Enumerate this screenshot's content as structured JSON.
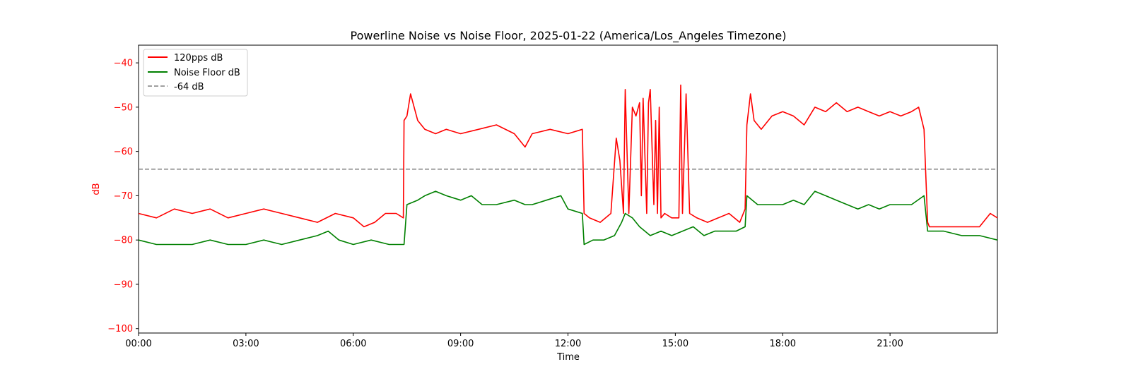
{
  "chart_data": {
    "type": "line",
    "title": "Powerline Noise vs Noise Floor, 2025-01-22 (America/Los_Angeles Timezone)",
    "xlabel": "Time",
    "ylabel": "dB",
    "xlim": [
      0,
      24
    ],
    "ylim": [
      -101,
      -36
    ],
    "x_ticks": [
      {
        "value": 0,
        "label": "00:00"
      },
      {
        "value": 3,
        "label": "03:00"
      },
      {
        "value": 6,
        "label": "06:00"
      },
      {
        "value": 9,
        "label": "09:00"
      },
      {
        "value": 12,
        "label": "12:00"
      },
      {
        "value": 15,
        "label": "15:00"
      },
      {
        "value": 18,
        "label": "18:00"
      },
      {
        "value": 21,
        "label": "21:00"
      }
    ],
    "y_ticks": [
      {
        "value": -40,
        "label": "−40"
      },
      {
        "value": -50,
        "label": "−50"
      },
      {
        "value": -60,
        "label": "−60"
      },
      {
        "value": -70,
        "label": "−70"
      },
      {
        "value": -80,
        "label": "−80"
      },
      {
        "value": -90,
        "label": "−90"
      },
      {
        "value": -100,
        "label": "−100"
      }
    ],
    "grid": false,
    "legend_position": "top-left",
    "y_axis_color": "#ff0000",
    "series": [
      {
        "name": "120pps dB",
        "color": "#ff0000",
        "style": "solid",
        "x": [
          0,
          0.5,
          1,
          1.5,
          2,
          2.5,
          3,
          3.5,
          4,
          4.5,
          5,
          5.5,
          6,
          6.3,
          6.6,
          6.9,
          7.2,
          7.4,
          7.42,
          7.5,
          7.6,
          7.8,
          8.0,
          8.3,
          8.6,
          9.0,
          9.5,
          10.0,
          10.5,
          10.8,
          11.0,
          11.5,
          12.0,
          12.4,
          12.45,
          12.6,
          12.9,
          13.2,
          13.35,
          13.45,
          13.55,
          13.6,
          13.7,
          13.8,
          13.9,
          14.0,
          14.05,
          14.1,
          14.2,
          14.25,
          14.3,
          14.4,
          14.45,
          14.5,
          14.55,
          14.6,
          14.7,
          14.9,
          15.1,
          15.15,
          15.2,
          15.3,
          15.4,
          15.6,
          15.9,
          16.2,
          16.5,
          16.8,
          16.95,
          17.0,
          17.1,
          17.2,
          17.4,
          17.7,
          18.0,
          18.3,
          18.6,
          18.9,
          19.2,
          19.5,
          19.8,
          20.1,
          20.4,
          20.7,
          21.0,
          21.3,
          21.6,
          21.8,
          21.95,
          22.05,
          22.1,
          22.5,
          23.0,
          23.5,
          23.8,
          24.0
        ],
        "y": [
          -74,
          -75,
          -73,
          -74,
          -73,
          -75,
          -74,
          -73,
          -74,
          -75,
          -76,
          -74,
          -75,
          -77,
          -76,
          -74,
          -74,
          -75,
          -53,
          -52,
          -47,
          -53,
          -55,
          -56,
          -55,
          -56,
          -55,
          -54,
          -56,
          -59,
          -56,
          -55,
          -56,
          -55,
          -74,
          -75,
          -76,
          -74,
          -57,
          -62,
          -74,
          -46,
          -74,
          -50,
          -52,
          -49,
          -70,
          -48,
          -74,
          -49,
          -46,
          -72,
          -53,
          -74,
          -50,
          -75,
          -74,
          -75,
          -75,
          -45,
          -74,
          -47,
          -74,
          -75,
          -76,
          -75,
          -74,
          -76,
          -73,
          -54,
          -47,
          -53,
          -55,
          -52,
          -51,
          -52,
          -54,
          -50,
          -51,
          -49,
          -51,
          -50,
          -51,
          -52,
          -51,
          -52,
          -51,
          -50,
          -55,
          -76,
          -77,
          -77,
          -77,
          -77,
          -74,
          -75
        ]
      },
      {
        "name": "Noise Floor dB",
        "color": "#008000",
        "style": "solid",
        "x": [
          0,
          0.5,
          1,
          1.5,
          2,
          2.5,
          3,
          3.5,
          4,
          4.5,
          5,
          5.3,
          5.6,
          6.0,
          6.5,
          7.0,
          7.4,
          7.42,
          7.5,
          7.8,
          8.0,
          8.3,
          8.6,
          9.0,
          9.3,
          9.6,
          10.0,
          10.5,
          10.8,
          11.0,
          11.4,
          11.8,
          12.0,
          12.4,
          12.45,
          12.7,
          13.0,
          13.3,
          13.5,
          13.6,
          13.8,
          14.0,
          14.3,
          14.6,
          14.9,
          15.2,
          15.5,
          15.8,
          16.1,
          16.4,
          16.7,
          16.95,
          17.0,
          17.3,
          17.7,
          18.0,
          18.3,
          18.6,
          18.9,
          19.2,
          19.5,
          19.8,
          20.1,
          20.4,
          20.7,
          21.0,
          21.3,
          21.6,
          21.95,
          22.05,
          22.1,
          22.5,
          23.0,
          23.5,
          24.0
        ],
        "y": [
          -80,
          -81,
          -81,
          -81,
          -80,
          -81,
          -81,
          -80,
          -81,
          -80,
          -79,
          -78,
          -80,
          -81,
          -80,
          -81,
          -81,
          -81,
          -72,
          -71,
          -70,
          -69,
          -70,
          -71,
          -70,
          -72,
          -72,
          -71,
          -72,
          -72,
          -71,
          -70,
          -73,
          -74,
          -81,
          -80,
          -80,
          -79,
          -76,
          -74,
          -75,
          -77,
          -79,
          -78,
          -79,
          -78,
          -77,
          -79,
          -78,
          -78,
          -78,
          -77,
          -70,
          -72,
          -72,
          -72,
          -71,
          -72,
          -69,
          -70,
          -71,
          -72,
          -73,
          -72,
          -73,
          -72,
          -72,
          -72,
          -70,
          -78,
          -78,
          -78,
          -79,
          -79,
          -80
        ]
      },
      {
        "name": "-64 dB",
        "color": "#808080",
        "style": "dashed",
        "x": [
          0,
          24
        ],
        "y": [
          -64,
          -64
        ]
      }
    ]
  }
}
